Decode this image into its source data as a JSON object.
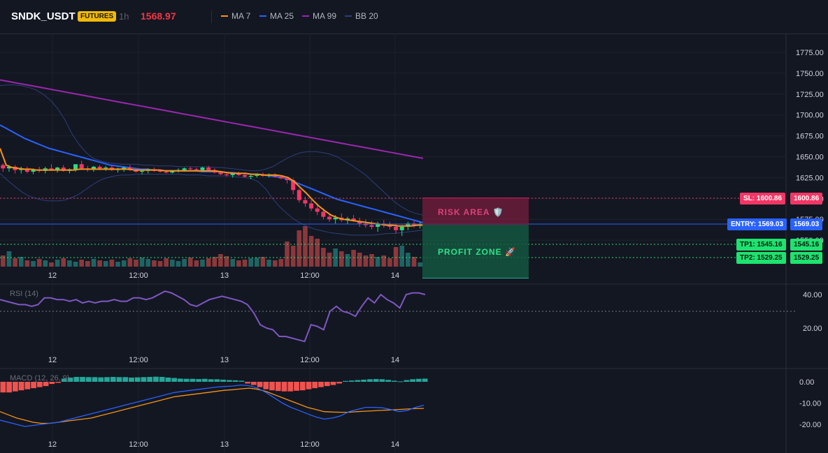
{
  "header": {
    "symbol": "SNDK_USDT",
    "badge": "FUTURES",
    "timeframe": "1h",
    "price": "1568.97",
    "legend": [
      {
        "label": "MA 7",
        "color": "#f7931a"
      },
      {
        "label": "MA 25",
        "color": "#2962ff"
      },
      {
        "label": "MA 99",
        "color": "#9c27b0"
      },
      {
        "label": "BB 20",
        "color": "#2d3f7a"
      }
    ]
  },
  "zones": {
    "risk_label": "RISK AREA 🛡️",
    "profit_label": "PROFIT ZONE 🚀"
  },
  "price_labels": {
    "sl": "SL: 1600.86",
    "sl_value": "1600.86",
    "entry": "ENTRY: 1569.03",
    "entry_value": "1569.03",
    "tp1": "TP1: 1545.16",
    "tp1_value": "1545.16",
    "tp2": "TP2: 1529.25",
    "tp2_value": "1529.25"
  },
  "rsi_label": "RSI (14)",
  "macd_label": "MACD (12, 26, 9)",
  "colors": {
    "up": "#26a69a",
    "down": "#ef5350",
    "candle_up": "#26de81",
    "candle_down": "#f23665",
    "grid": "#1e222d"
  },
  "chart_data": [
    {
      "type": "candlestick",
      "x_ticks": [
        "12",
        "12:00",
        "13",
        "12:00",
        "14"
      ],
      "y_ticks": [
        "1775.00",
        "1750.00",
        "1725.00",
        "1700.00",
        "1675.00",
        "1650.00",
        "1625.00",
        "1600.00",
        "1575.00",
        "1550.00"
      ],
      "ylim": [
        1535,
        1790
      ],
      "candles": [
        [
          1640,
          1642,
          1632,
          1636
        ],
        [
          1636,
          1640,
          1632,
          1638
        ],
        [
          1638,
          1640,
          1630,
          1634
        ],
        [
          1634,
          1638,
          1630,
          1635
        ],
        [
          1635,
          1638,
          1630,
          1632
        ],
        [
          1632,
          1636,
          1629,
          1634
        ],
        [
          1634,
          1638,
          1631,
          1633
        ],
        [
          1633,
          1638,
          1630,
          1636
        ],
        [
          1636,
          1641,
          1633,
          1634
        ],
        [
          1634,
          1638,
          1631,
          1637
        ],
        [
          1637,
          1640,
          1632,
          1633
        ],
        [
          1633,
          1636,
          1630,
          1635
        ],
        [
          1635,
          1639,
          1632,
          1641
        ],
        [
          1641,
          1645,
          1635,
          1636
        ],
        [
          1636,
          1639,
          1632,
          1635
        ],
        [
          1635,
          1639,
          1632,
          1638
        ],
        [
          1638,
          1640,
          1634,
          1636
        ],
        [
          1636,
          1639,
          1633,
          1637
        ],
        [
          1637,
          1640,
          1633,
          1634
        ],
        [
          1634,
          1637,
          1631,
          1635
        ],
        [
          1635,
          1638,
          1632,
          1637
        ],
        [
          1637,
          1640,
          1633,
          1634
        ],
        [
          1634,
          1636,
          1631,
          1632
        ],
        [
          1632,
          1635,
          1629,
          1633
        ],
        [
          1633,
          1636,
          1630,
          1635
        ],
        [
          1635,
          1637,
          1632,
          1633
        ],
        [
          1633,
          1635,
          1631,
          1632
        ],
        [
          1632,
          1634,
          1630,
          1631
        ],
        [
          1631,
          1634,
          1630,
          1633
        ],
        [
          1633,
          1636,
          1631,
          1634
        ],
        [
          1634,
          1637,
          1632,
          1636
        ],
        [
          1636,
          1638,
          1634,
          1635
        ],
        [
          1635,
          1637,
          1633,
          1634
        ],
        [
          1634,
          1638,
          1632,
          1637
        ],
        [
          1637,
          1639,
          1633,
          1634
        ],
        [
          1634,
          1636,
          1630,
          1631
        ],
        [
          1631,
          1633,
          1628,
          1629
        ],
        [
          1629,
          1632,
          1626,
          1628
        ],
        [
          1628,
          1631,
          1625,
          1630
        ],
        [
          1630,
          1632,
          1627,
          1628
        ],
        [
          1628,
          1631,
          1625,
          1626
        ],
        [
          1626,
          1629,
          1623,
          1627
        ],
        [
          1627,
          1630,
          1625,
          1628
        ],
        [
          1628,
          1631,
          1626,
          1627
        ],
        [
          1627,
          1630,
          1625,
          1628
        ],
        [
          1628,
          1630,
          1625,
          1626
        ],
        [
          1626,
          1628,
          1623,
          1624
        ],
        [
          1624,
          1626,
          1618,
          1622
        ],
        [
          1622,
          1624,
          1605,
          1610
        ],
        [
          1610,
          1612,
          1595,
          1598
        ],
        [
          1598,
          1602,
          1590,
          1594
        ],
        [
          1594,
          1598,
          1585,
          1588
        ],
        [
          1588,
          1592,
          1580,
          1584
        ],
        [
          1584,
          1588,
          1575,
          1578
        ],
        [
          1578,
          1582,
          1572,
          1575
        ],
        [
          1575,
          1580,
          1570,
          1577
        ],
        [
          1577,
          1582,
          1572,
          1574
        ],
        [
          1574,
          1578,
          1569,
          1576
        ],
        [
          1576,
          1580,
          1572,
          1573
        ],
        [
          1573,
          1577,
          1566,
          1570
        ],
        [
          1570,
          1575,
          1565,
          1568
        ],
        [
          1568,
          1573,
          1563,
          1566
        ],
        [
          1566,
          1572,
          1560,
          1570
        ],
        [
          1570,
          1574,
          1565,
          1568
        ],
        [
          1568,
          1572,
          1563,
          1566
        ],
        [
          1566,
          1570,
          1558,
          1562
        ],
        [
          1562,
          1568,
          1555,
          1566
        ],
        [
          1566,
          1572,
          1562,
          1570
        ],
        [
          1570,
          1573,
          1565,
          1568
        ],
        [
          1568,
          1572,
          1564,
          1569
        ]
      ],
      "volume": [
        16,
        22,
        12,
        14,
        9,
        8,
        11,
        9,
        6,
        10,
        12,
        9,
        7,
        10,
        8,
        11,
        9,
        8,
        10,
        7,
        9,
        12,
        10,
        13,
        11,
        9,
        8,
        12,
        10,
        8,
        11,
        13,
        9,
        10,
        12,
        14,
        18,
        15,
        11,
        9,
        10,
        12,
        13,
        14,
        10,
        9,
        11,
        36,
        30,
        52,
        58,
        44,
        40,
        27,
        20,
        26,
        22,
        18,
        24,
        20,
        16,
        18,
        14,
        16,
        12,
        28,
        30,
        20,
        14,
        6
      ],
      "ma7": [
        1660,
        1640,
        1637,
        1636,
        1635,
        1635,
        1634,
        1634,
        1634,
        1634,
        1634,
        1634,
        1634,
        1635,
        1635,
        1635,
        1635,
        1635,
        1635,
        1635,
        1635,
        1635,
        1634,
        1634,
        1634,
        1634,
        1634,
        1633,
        1633,
        1633,
        1633,
        1633,
        1633,
        1633,
        1633,
        1633,
        1632,
        1631,
        1630,
        1630,
        1630,
        1629,
        1629,
        1628,
        1628,
        1628,
        1627,
        1625,
        1620,
        1613,
        1606,
        1598,
        1591,
        1585,
        1580,
        1577,
        1575,
        1574,
        1573,
        1572,
        1571,
        1570,
        1569,
        1568,
        1568,
        1567,
        1567,
        1567,
        1568,
        1568
      ],
      "ma25": [
        1688,
        1684,
        1680,
        1676,
        1672,
        1669,
        1666,
        1663,
        1660,
        1658,
        1656,
        1654,
        1652,
        1650,
        1648,
        1646,
        1644,
        1642,
        1640,
        1639,
        1638,
        1637,
        1636,
        1635,
        1635,
        1634,
        1634,
        1633,
        1633,
        1633,
        1633,
        1633,
        1633,
        1632,
        1632,
        1632,
        1632,
        1631,
        1631,
        1630,
        1630,
        1629,
        1629,
        1628,
        1627,
        1626,
        1625,
        1623,
        1620,
        1617,
        1614,
        1611,
        1608,
        1605,
        1602,
        1599,
        1597,
        1595,
        1593,
        1591,
        1589,
        1587,
        1585,
        1583,
        1581,
        1579,
        1577,
        1575,
        1573,
        1571
      ],
      "ma99": [
        1742,
        1740,
        1738,
        1736,
        1734,
        1732,
        1730,
        1728,
        1726,
        1724,
        1722,
        1720,
        1718,
        1716,
        1714,
        1712,
        1710,
        1708,
        1706,
        1704,
        1702,
        1700,
        1698,
        1696,
        1694,
        1692,
        1690,
        1688,
        1686,
        1684,
        1682,
        1680,
        1678,
        1676,
        1674,
        1672,
        1670,
        1668,
        1666,
        1664,
        1662,
        1660,
        1658,
        1656,
        1654,
        1652,
        1650,
        1648
      ],
      "bb_upper": [
        1735,
        1736,
        1736,
        1735,
        1733,
        1730,
        1725,
        1718,
        1708,
        1695,
        1678,
        1665,
        1655,
        1648,
        1645,
        1643,
        1642,
        1641,
        1641,
        1641,
        1640,
        1640,
        1639,
        1639,
        1639,
        1638,
        1638,
        1638,
        1638,
        1638,
        1637,
        1637,
        1636,
        1635,
        1634,
        1633,
        1633,
        1635,
        1638,
        1643,
        1648,
        1652,
        1655,
        1656,
        1656,
        1655,
        1653,
        1650,
        1645,
        1640,
        1634,
        1628,
        1620,
        1612,
        1604,
        1596,
        1590,
        1585,
        1582,
        1580
      ],
      "bb_lower": [
        1630,
        1622,
        1615,
        1608,
        1603,
        1600,
        1598,
        1597,
        1597,
        1598,
        1601,
        1605,
        1611,
        1617,
        1622,
        1625,
        1627,
        1628,
        1628,
        1629,
        1629,
        1629,
        1629,
        1629,
        1629,
        1629,
        1628,
        1628,
        1628,
        1627,
        1627,
        1627,
        1627,
        1626,
        1625,
        1624,
        1620,
        1612,
        1600,
        1590,
        1582,
        1575,
        1570,
        1566,
        1563,
        1561,
        1559,
        1558,
        1557,
        1556,
        1556,
        1556,
        1556,
        1557,
        1558,
        1558,
        1559,
        1560,
        1561,
        1562
      ],
      "levels": {
        "sl": 1600.86,
        "entry": 1569.03,
        "tp1": 1545.16,
        "tp2": 1529.25
      }
    },
    {
      "type": "line",
      "name": "RSI (14)",
      "y_ticks": [
        "40.00",
        "20.00"
      ],
      "ylim": [
        7,
        46
      ],
      "midline": 30,
      "values": [
        37,
        36,
        35,
        34,
        34,
        33,
        34,
        38,
        38,
        37,
        37,
        36,
        37,
        35,
        36,
        35,
        36,
        36,
        37,
        36,
        36,
        38,
        38,
        37,
        38,
        40,
        42,
        41,
        39,
        37,
        34,
        33,
        35,
        37,
        38,
        39,
        38,
        37,
        36,
        34,
        29,
        22,
        20,
        19,
        15,
        15,
        14,
        13,
        12,
        22,
        21,
        19,
        30,
        33,
        30,
        29,
        27,
        33,
        38,
        35,
        40,
        37,
        35,
        32,
        40,
        41,
        41,
        40
      ],
      "xlabels": [
        "12",
        "12:00",
        "13",
        "12:00",
        "14"
      ]
    },
    {
      "type": "bar+line",
      "name": "MACD (12, 26, 9)",
      "y_ticks": [
        "0.00",
        "-10.00",
        "-20.00"
      ],
      "ylim": [
        -24,
        4
      ],
      "histogram": [
        -5,
        -5,
        -4.5,
        -4,
        -3.5,
        -3,
        -2.5,
        -2,
        -1,
        -0.5,
        1.5,
        2,
        2.3,
        2.3,
        2.2,
        2.2,
        2.1,
        2.2,
        2.3,
        2.2,
        2.2,
        2,
        2.1,
        2.2,
        2.3,
        2.4,
        2.3,
        2,
        1.8,
        1.5,
        1.4,
        1.4,
        1.3,
        1.4,
        1.2,
        1.2,
        1,
        0.8,
        0.7,
        0.5,
        -0.8,
        -1.5,
        -2.5,
        -3.5,
        -4,
        -4.3,
        -4.5,
        -4.5,
        -4.2,
        -4,
        -3.5,
        -3,
        -2.5,
        -2,
        -1.5,
        -0.8,
        0.4,
        0.6,
        0.8,
        1,
        1.2,
        1.3,
        1.2,
        0.9,
        0.5,
        0.2,
        0.8,
        1.2,
        1.4,
        1.5
      ],
      "macd": [
        -18,
        -19,
        -20,
        -21,
        -20.5,
        -20,
        -19.5,
        -19,
        -18,
        -17,
        -16,
        -15,
        -14,
        -13,
        -12,
        -11,
        -10,
        -9,
        -8,
        -7,
        -6,
        -5,
        -4.5,
        -4,
        -3.5,
        -3,
        -2.5,
        -2.2,
        -2,
        -1.5,
        -1.8,
        -3,
        -5,
        -7.5,
        -10,
        -12,
        -13.5,
        -15,
        -16.5,
        -17.5,
        -17,
        -16,
        -14,
        -13,
        -12,
        -12,
        -12.2,
        -13,
        -14,
        -13.5,
        -12,
        -11
      ],
      "signal": [
        -14,
        -15.5,
        -17,
        -18,
        -19,
        -19.5,
        -19.5,
        -19,
        -18.5,
        -18,
        -17.5,
        -17,
        -16,
        -15,
        -14,
        -13,
        -12,
        -11,
        -10,
        -9,
        -8,
        -7,
        -6.5,
        -6,
        -5.5,
        -5,
        -4.5,
        -4,
        -3.7,
        -3.3,
        -3,
        -3.5,
        -4.5,
        -6,
        -7.5,
        -9,
        -10.5,
        -12,
        -13,
        -14,
        -14.2,
        -14.3,
        -14.3,
        -14,
        -13.8,
        -13.6,
        -13.4,
        -13.2,
        -13,
        -12.8,
        -12.6,
        -12.5
      ],
      "xlabels": [
        "12",
        "12:00",
        "13",
        "12:00",
        "14"
      ]
    }
  ]
}
